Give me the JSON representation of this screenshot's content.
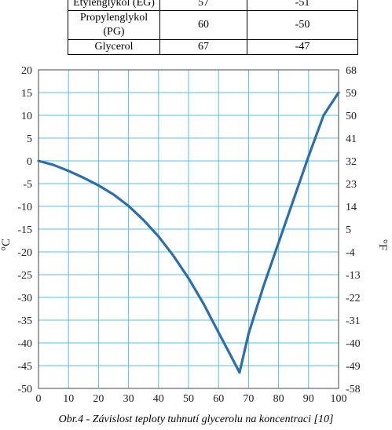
{
  "table": {
    "rows": [
      {
        "name": "Etylenglykol (EG)",
        "conc": "57",
        "temp": "-51"
      },
      {
        "name": "Propylenglykol (PG)",
        "conc": "60",
        "temp": "-50"
      },
      {
        "name": "Glycerol",
        "conc": "67",
        "temp": "-47"
      }
    ]
  },
  "chart_data": {
    "type": "line",
    "xlim": [
      0,
      100
    ],
    "ylim": [
      -50,
      20
    ],
    "x_ticks": [
      0,
      10,
      20,
      30,
      40,
      50,
      60,
      70,
      80,
      90,
      100
    ],
    "y_left_ticks": [
      20,
      15,
      10,
      5,
      0,
      -5,
      -10,
      -15,
      -20,
      -25,
      -30,
      -35,
      -40,
      -45,
      -50
    ],
    "y_right_ticks": [
      68,
      59,
      50,
      41,
      32,
      23,
      14,
      5,
      -4,
      -13,
      -22,
      -31,
      -40,
      -49,
      -58
    ],
    "ylabel_left": "°C",
    "ylabel_right": "°F",
    "grid": true,
    "line_color": "#2a6ead",
    "grid_color": "#55c0ea",
    "series": [
      {
        "x": [
          0,
          5,
          10,
          15,
          20,
          25,
          30,
          35,
          40,
          45,
          50,
          55,
          60,
          64,
          67,
          70,
          75,
          80,
          85,
          90,
          95,
          100
        ],
        "y": [
          0,
          -0.9,
          -2.2,
          -3.7,
          -5.4,
          -7.4,
          -9.9,
          -13,
          -16.6,
          -20.9,
          -25.8,
          -31.4,
          -37.7,
          -42.7,
          -46.5,
          -38,
          -27.5,
          -18,
          -8.5,
          1,
          10,
          15
        ]
      }
    ]
  },
  "caption": "Obr.4 - Závislost teploty tuhnutí glycerolu na koncentraci [10]"
}
